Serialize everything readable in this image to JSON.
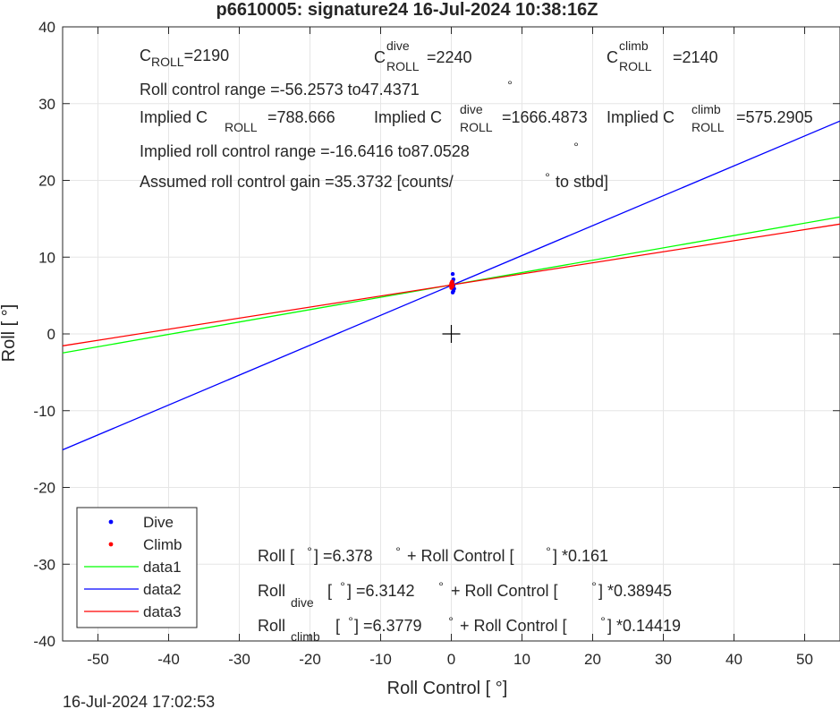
{
  "chart_data": {
    "type": "line",
    "title": "p6610005: signature24 16-Jul-2024 10:38:16Z",
    "xlabel": "Roll Control [   °]",
    "ylabel": "Roll [  °]",
    "xlim": [
      -55,
      55
    ],
    "ylim": [
      -40,
      40
    ],
    "xticks": [
      -50,
      -40,
      -30,
      -20,
      -10,
      0,
      10,
      20,
      30,
      40,
      50
    ],
    "yticks": [
      -40,
      -30,
      -20,
      -10,
      0,
      10,
      20,
      30,
      40
    ],
    "grid": true,
    "legend_position": "bottom-left",
    "series": [
      {
        "name": "Dive",
        "kind": "markers",
        "color": "#0000ff",
        "points": [
          [
            0.2,
            7.8
          ],
          [
            0.3,
            7.1
          ],
          [
            0.2,
            6.8
          ],
          [
            0.1,
            6.5
          ],
          [
            0.3,
            6.3
          ],
          [
            0.2,
            6.1
          ],
          [
            0.4,
            5.9
          ],
          [
            0.3,
            5.6
          ],
          [
            0.2,
            5.4
          ],
          [
            0.1,
            6.0
          ]
        ]
      },
      {
        "name": "Climb",
        "kind": "markers",
        "color": "#ff0000",
        "points": [
          [
            0.0,
            6.6
          ],
          [
            0.1,
            6.4
          ],
          [
            0.2,
            6.2
          ],
          [
            0.0,
            6.0
          ],
          [
            0.1,
            6.8
          ],
          [
            -0.1,
            6.3
          ],
          [
            0.2,
            6.5
          ]
        ]
      },
      {
        "name": "data1",
        "kind": "line",
        "color": "#00ff00",
        "intercept": 6.378,
        "slope": 0.161
      },
      {
        "name": "data2",
        "kind": "line",
        "color": "#0000ff",
        "intercept": 6.3142,
        "slope": 0.38945
      },
      {
        "name": "data3",
        "kind": "line",
        "color": "#ff0000",
        "intercept": 6.3779,
        "slope": 0.14419
      }
    ],
    "origin_marker": [
      0,
      0
    ],
    "annotations": {
      "c_roll": {
        "base": "C",
        "sub": "ROLL",
        "value": "=2190"
      },
      "c_roll_dive": {
        "base": "C",
        "sup": "dive",
        "sub": "ROLL",
        "value": "=2240"
      },
      "c_roll_climb": {
        "base": "C",
        "sup": "climb",
        "sub": "ROLL",
        "value": "=2140"
      },
      "roll_control_range": {
        "text": "Roll control range =-56.2573 to47.4371",
        "degree": "°"
      },
      "implied_c": {
        "text": "Implied C",
        "sub": "ROLL",
        "value": "=788.666"
      },
      "implied_c_dive": {
        "text": "Implied C",
        "sup": "dive",
        "sub": "ROLL",
        "value": "=1666.4873"
      },
      "implied_c_climb": {
        "text": "Implied C",
        "sup": "climb",
        "sub": "ROLL",
        "value": "=575.2905"
      },
      "implied_range": {
        "text": "Implied roll control range =-16.6416 to87.0528",
        "degree": "°"
      },
      "assumed_gain": {
        "text": "Assumed roll control gain =35.3732 [counts/",
        "degree": "°",
        "tail": "to stbd]"
      },
      "fit_all": {
        "a": "Roll [",
        "deg": "°",
        "b": "] =6.378",
        "c": "+ Roll Control [",
        "d": "] *0.161"
      },
      "fit_dive": {
        "a": "Roll",
        "sub": "dive",
        "b": "[",
        "deg": "°",
        "c": "] =6.3142",
        "d": "+ Roll Control [",
        "e": "] *0.38945"
      },
      "fit_climb": {
        "a": "Roll",
        "sub": "climb",
        "b": "[",
        "deg": "°",
        "c": "] =6.3779",
        "d": "+ Roll Control [",
        "e": "] *0.14419"
      }
    }
  },
  "footer": {
    "timestamp": "16-Jul-2024 17:02:53"
  }
}
